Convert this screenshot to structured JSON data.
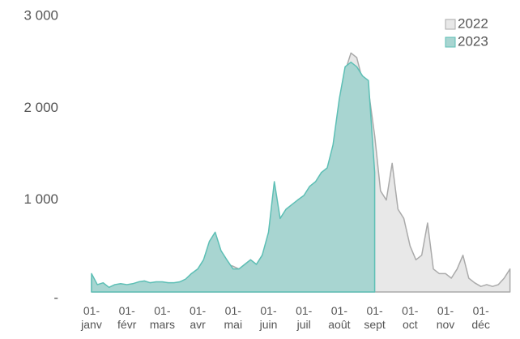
{
  "chart_data": {
    "type": "area",
    "categories": [
      "01-janv",
      null,
      null,
      null,
      null,
      null,
      "01-févr",
      null,
      null,
      null,
      null,
      null,
      "01-mars",
      null,
      null,
      null,
      null,
      null,
      "01-avr",
      null,
      null,
      null,
      null,
      null,
      "01-mai",
      null,
      null,
      null,
      null,
      null,
      "01-juin",
      null,
      null,
      null,
      null,
      null,
      "01-juil",
      null,
      null,
      null,
      null,
      null,
      "01-août",
      null,
      null,
      null,
      null,
      null,
      "01-sept",
      null,
      null,
      null,
      null,
      null,
      "01-oct",
      null,
      null,
      null,
      null,
      null,
      "01-nov",
      null,
      null,
      null,
      null,
      null,
      "01-déc",
      null,
      null,
      null,
      null,
      null
    ],
    "series": [
      {
        "name": "2022",
        "color": "#aaaaaa",
        "fill": "#e8e8e8",
        "values": [
          150,
          60,
          80,
          40,
          60,
          70,
          70,
          80,
          100,
          110,
          100,
          100,
          100,
          100,
          90,
          110,
          130,
          150,
          200,
          250,
          450,
          550,
          400,
          300,
          280,
          250,
          300,
          350,
          300,
          400,
          600,
          1100,
          750,
          850,
          900,
          950,
          1000,
          1100,
          1150,
          1300,
          1300,
          1450,
          2000,
          2400,
          2600,
          2550,
          2300,
          2200,
          1700,
          1100,
          1000,
          1400,
          900,
          800,
          500,
          350,
          400,
          750,
          250,
          200,
          200,
          150,
          250,
          400,
          150,
          100,
          60,
          80,
          60,
          80,
          150,
          250
        ]
      },
      {
        "name": "2023",
        "color": "#5dbfb5",
        "fill": "#a8d5d1",
        "values": [
          200,
          80,
          100,
          50,
          80,
          90,
          80,
          90,
          110,
          120,
          100,
          110,
          110,
          100,
          100,
          110,
          140,
          200,
          250,
          350,
          550,
          650,
          450,
          350,
          250,
          250,
          300,
          350,
          300,
          400,
          650,
          1200,
          800,
          900,
          950,
          1000,
          1050,
          1150,
          1200,
          1300,
          1350,
          1600,
          2100,
          2450,
          2500,
          2450,
          2350,
          2300,
          1300,
          null,
          null,
          null,
          null,
          null,
          null,
          null,
          null,
          null,
          null,
          null,
          null,
          null,
          null,
          null,
          null,
          null,
          null,
          null,
          null,
          null,
          null,
          null
        ]
      }
    ],
    "ylim": [
      0,
      3000
    ],
    "yticks": [
      {
        "value": 0,
        "label": "-"
      },
      {
        "value": 1000,
        "label": "1 000"
      },
      {
        "value": 2000,
        "label": "2 000"
      },
      {
        "value": 3000,
        "label": "3 000"
      }
    ],
    "legend": "top-right"
  }
}
